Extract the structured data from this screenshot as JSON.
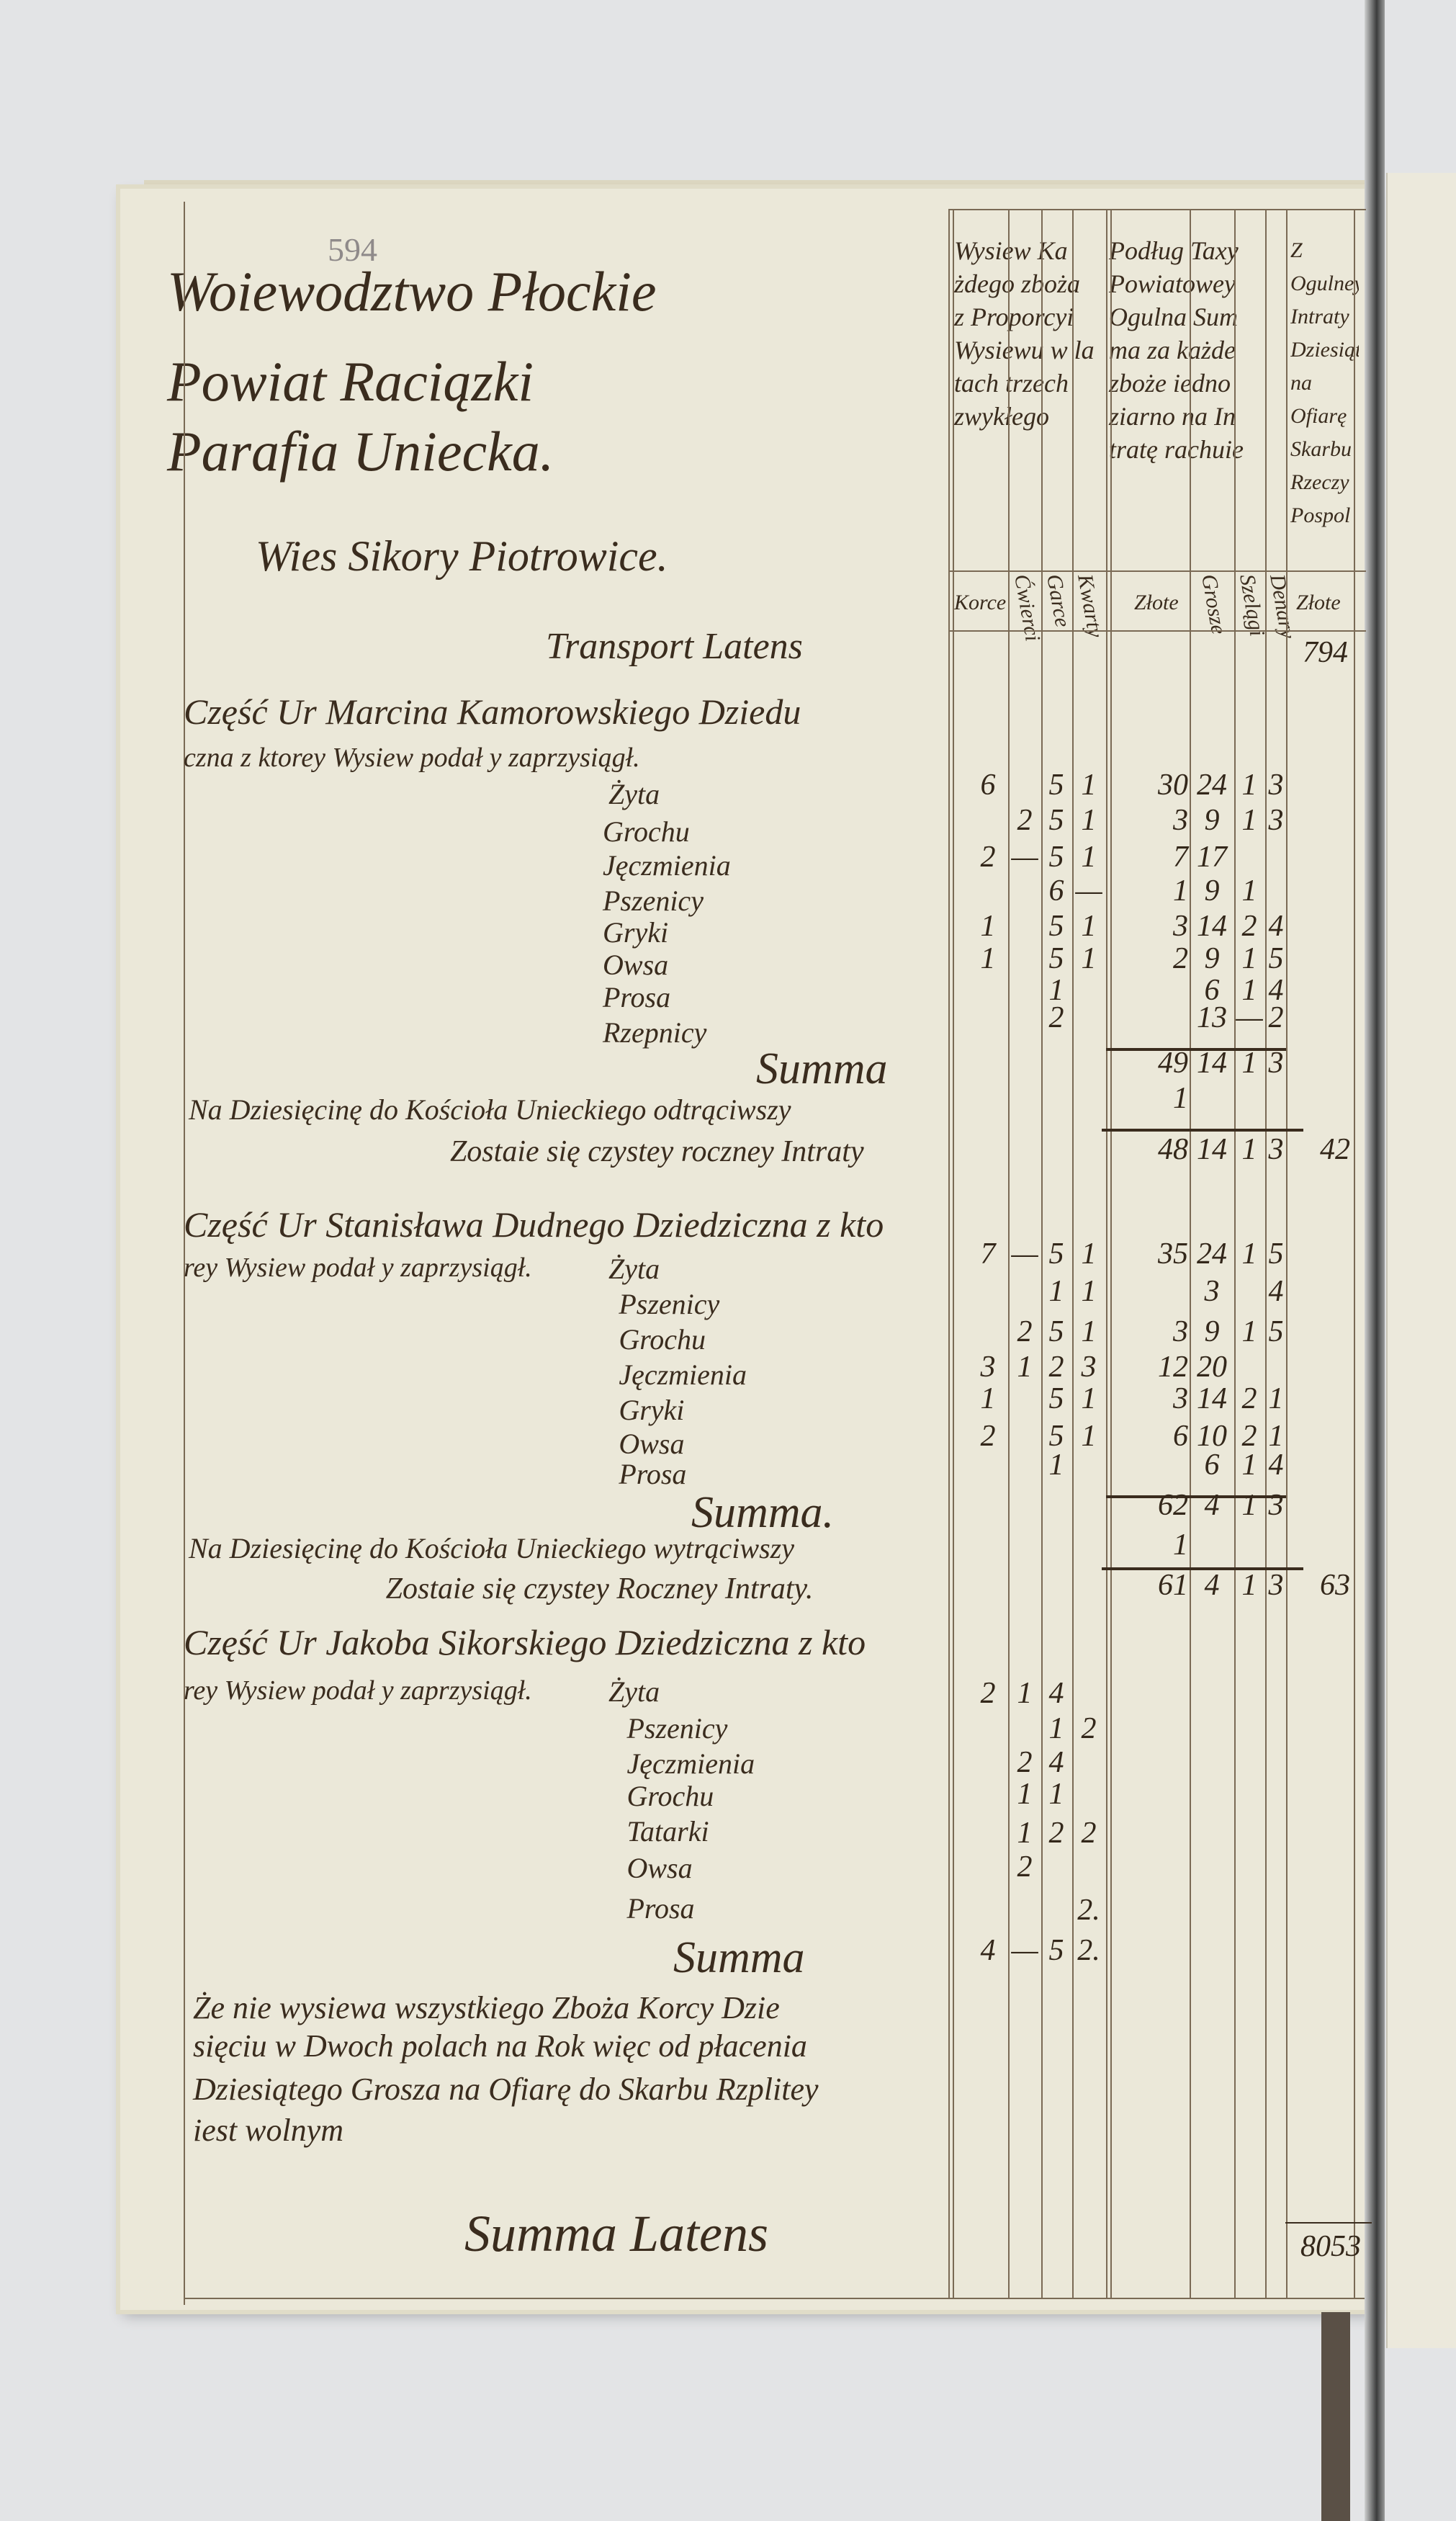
{
  "document": {
    "folio_number": "594",
    "heading": [
      "Woiewodztwo Płockie",
      "Powiat Raciązki",
      "Parafia Uniecka."
    ],
    "village": "Wies Sikory Piotrowice.",
    "transport_label": "Transport Latens",
    "transport_value": "794",
    "column_headers": {
      "sowing": "Wysiew Ka\nżdego zboża\nz Proporcyi\nWysiewu w la\ntach trzech\nzwykłego",
      "tax": "Podług Taxy\nPowiatowey\nOgulna Sum\nma za każde\nzboże iedno\nziarno na In\ntratę rachuie",
      "tenth": "Z Ogulney\nIntraty\nDziesiątego\nna Ofiarę\nSkarbu\nRzeczy Pospol"
    },
    "units": [
      "Korce",
      "Ćwierci",
      "Garce",
      "Kwarty",
      "Złote",
      "Grosze",
      "Szelągi",
      "Denary",
      "Złote"
    ],
    "sections": [
      {
        "title_lines": [
          "Część Ur Marcina Kamorowskiego Dziedu",
          "czna z ktorey Wysiew podał y zaprzysiągł."
        ],
        "rows": [
          {
            "grain": "Żyta",
            "korce": "6",
            "cwierci": "",
            "garce": "5",
            "kwarty": "1",
            "zlote": "30",
            "grosze": "24",
            "szelagi": "1",
            "denary": "3"
          },
          {
            "grain": "Grochu",
            "korce": "",
            "cwierci": "2",
            "garce": "5",
            "kwarty": "1",
            "zlote": "3",
            "grosze": "9",
            "szelagi": "1",
            "denary": "3"
          },
          {
            "grain": "Jęczmienia",
            "korce": "2",
            "cwierci": "—",
            "garce": "5",
            "kwarty": "1",
            "zlote": "7",
            "grosze": "17",
            "szelagi": "",
            "denary": ""
          },
          {
            "grain": "Pszenicy",
            "korce": "",
            "cwierci": "",
            "garce": "6",
            "kwarty": "—",
            "zlote": "1",
            "grosze": "9",
            "szelagi": "1",
            "denary": ""
          },
          {
            "grain": "Gryki",
            "korce": "1",
            "cwierci": "",
            "garce": "5",
            "kwarty": "1",
            "zlote": "3",
            "grosze": "14",
            "szelagi": "2",
            "denary": "4"
          },
          {
            "grain": "Owsa",
            "korce": "1",
            "cwierci": "",
            "garce": "5",
            "kwarty": "1",
            "zlote": "2",
            "grosze": "9",
            "szelagi": "1",
            "denary": "5"
          },
          {
            "grain": "Prosa",
            "korce": "",
            "cwierci": "",
            "garce": "1",
            "kwarty": "",
            "zlote": "",
            "grosze": "6",
            "szelagi": "1",
            "denary": "4"
          },
          {
            "grain": "Rzepnicy",
            "korce": "",
            "cwierci": "",
            "garce": "2",
            "kwarty": "",
            "zlote": "",
            "grosze": "13",
            "szelagi": "—",
            "denary": "2"
          }
        ],
        "summa_label": "Summa",
        "summa": {
          "zlote": "49",
          "grosze": "14",
          "szelagi": "1",
          "denary": "3"
        },
        "tithe_label": "Na Dziesięcinę do Kościoła Unieckiego odtrąciwszy",
        "tithe": {
          "zlote": "1"
        },
        "net_label": "Zostaie się czystey roczney Intraty",
        "net": {
          "zlote": "48",
          "grosze": "14",
          "szelagi": "1",
          "denary": "3"
        },
        "tenth": "42"
      },
      {
        "title_lines": [
          "Część Ur Stanisława Dudnego Dziedziczna z kto",
          "rey Wysiew podał y zaprzysiągł."
        ],
        "rows": [
          {
            "grain": "Żyta",
            "korce": "7",
            "cwierci": "—",
            "garce": "5",
            "kwarty": "1",
            "zlote": "35",
            "grosze": "24",
            "szelagi": "1",
            "denary": "5"
          },
          {
            "grain": "Pszenicy",
            "korce": "",
            "cwierci": "",
            "garce": "1",
            "kwarty": "1",
            "zlote": "",
            "grosze": "3",
            "szelagi": "",
            "denary": "4"
          },
          {
            "grain": "Grochu",
            "korce": "",
            "cwierci": "2",
            "garce": "5",
            "kwarty": "1",
            "zlote": "3",
            "grosze": "9",
            "szelagi": "1",
            "denary": "5"
          },
          {
            "grain": "Jęczmienia",
            "korce": "3",
            "cwierci": "1",
            "garce": "2",
            "kwarty": "3",
            "zlote": "12",
            "grosze": "20",
            "szelagi": "",
            "denary": ""
          },
          {
            "grain": "Gryki",
            "korce": "1",
            "cwierci": "",
            "garce": "5",
            "kwarty": "1",
            "zlote": "3",
            "grosze": "14",
            "szelagi": "2",
            "denary": "1"
          },
          {
            "grain": "Owsa",
            "korce": "2",
            "cwierci": "",
            "garce": "5",
            "kwarty": "1",
            "zlote": "6",
            "grosze": "10",
            "szelagi": "2",
            "denary": "1"
          },
          {
            "grain": "Prosa",
            "korce": "",
            "cwierci": "",
            "garce": "1",
            "kwarty": "",
            "zlote": "",
            "grosze": "6",
            "szelagi": "1",
            "denary": "4"
          }
        ],
        "summa_label": "Summa.",
        "summa": {
          "zlote": "62",
          "grosze": "4",
          "szelagi": "1",
          "denary": "3"
        },
        "tithe_label": "Na Dziesięcinę do Kościoła Unieckiego wytrąciwszy",
        "tithe": {
          "zlote": "1"
        },
        "net_label": "Zostaie się czystey Roczney Intraty.",
        "net": {
          "zlote": "61",
          "grosze": "4",
          "szelagi": "1",
          "denary": "3"
        },
        "tenth": "63"
      },
      {
        "title_lines": [
          "Część Ur Jakoba Sikorskiego Dziedziczna z kto",
          "rey Wysiew podał y zaprzysiągł."
        ],
        "rows": [
          {
            "grain": "Żyta",
            "korce": "2",
            "cwierci": "1",
            "garce": "4",
            "kwarty": ""
          },
          {
            "grain": "Pszenicy",
            "korce": "",
            "cwierci": "",
            "garce": "1",
            "kwarty": "2"
          },
          {
            "grain": "Jęczmienia",
            "korce": "",
            "cwierci": "2",
            "garce": "4",
            "kwarty": ""
          },
          {
            "grain": "Grochu",
            "korce": "",
            "cwierci": "1",
            "garce": "1",
            "kwarty": ""
          },
          {
            "grain": "Tatarki",
            "korce": "",
            "cwierci": "1",
            "garce": "2",
            "kwarty": "2"
          },
          {
            "grain": "Owsa",
            "korce": "",
            "cwierci": "2",
            "garce": "",
            "kwarty": ""
          },
          {
            "grain": "Prosa",
            "korce": "",
            "cwierci": "",
            "garce": "",
            "kwarty": "2."
          }
        ],
        "summa_label": "Summa",
        "summa_sowing": {
          "korce": "4",
          "cwierci": "—",
          "garce": "5",
          "kwarty": "2."
        }
      }
    ],
    "note_lines": [
      "Że nie wysiewa wszystkiego Zboża Korcy Dzie",
      "sięciu w Dwoch polach na Rok więc od płacenia",
      "Dziesiątego Grosza na Ofiarę do Skarbu Rzplitey",
      "iest wolnym"
    ],
    "footer_label": "Summa Latens",
    "footer_value": "8053"
  },
  "colors": {
    "ink": "#3a2c1e",
    "paper": "#ebe8d9",
    "background": "#e3e4e6"
  }
}
